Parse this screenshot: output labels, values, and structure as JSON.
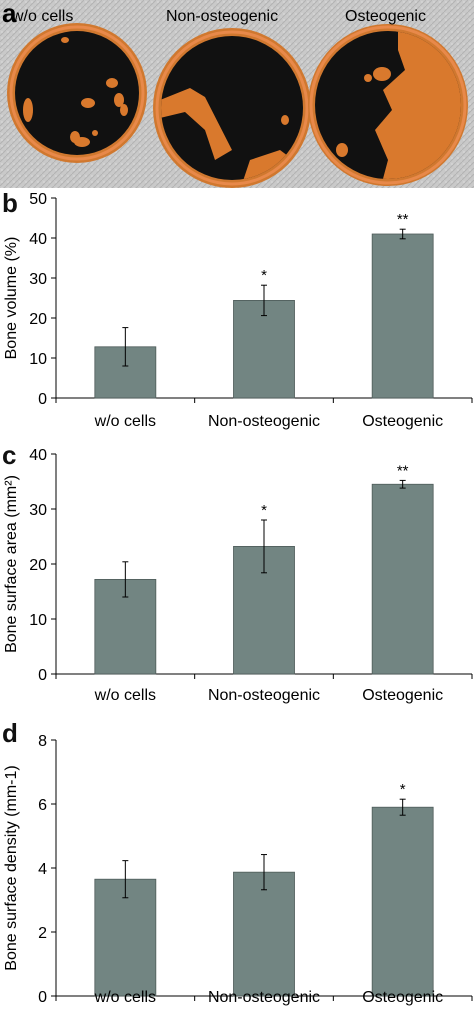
{
  "panel_a": {
    "letter": "a",
    "labels": [
      "w/o cells",
      "Non-osteogenic",
      "Osteogenic"
    ]
  },
  "colors": {
    "bar": "#728582",
    "orange": "#e07b2c",
    "dark": "#0f0f0f",
    "background": "#c8c8c8"
  },
  "chart_data": [
    {
      "panel": "b",
      "type": "bar",
      "categories": [
        "w/o cells",
        "Non-osteogenic",
        "Osteogenic"
      ],
      "values": [
        12.8,
        24.4,
        41
      ],
      "errors": [
        4.8,
        3.8,
        1.2
      ],
      "significance": [
        "",
        "*",
        "**"
      ],
      "ylabel": "Bone volume (%)",
      "ylim": [
        0,
        50
      ],
      "yticks": [
        "0",
        "10",
        "20",
        "30",
        "40",
        "50"
      ]
    },
    {
      "panel": "c",
      "type": "bar",
      "categories": [
        "w/o cells",
        "Non-osteogenic",
        "Osteogenic"
      ],
      "values": [
        17.2,
        23.2,
        34.5
      ],
      "errors": [
        3.2,
        4.8,
        0.7
      ],
      "significance": [
        "",
        "*",
        "**"
      ],
      "ylabel": "Bone surface area (mm²)",
      "ylim": [
        0,
        40
      ],
      "yticks": [
        "0",
        "10",
        "20",
        "30",
        "40"
      ]
    },
    {
      "panel": "d",
      "type": "bar",
      "categories": [
        "w/o cells",
        "Non-osteogenic",
        "Osteogenic"
      ],
      "values": [
        3.65,
        3.87,
        5.9
      ],
      "errors": [
        0.58,
        0.55,
        0.25
      ],
      "significance": [
        "",
        "",
        "*"
      ],
      "ylabel": "Bone surface density (mm-1)",
      "ylim": [
        0,
        8
      ],
      "yticks": [
        "0",
        "2",
        "4",
        "6",
        "8"
      ]
    }
  ]
}
